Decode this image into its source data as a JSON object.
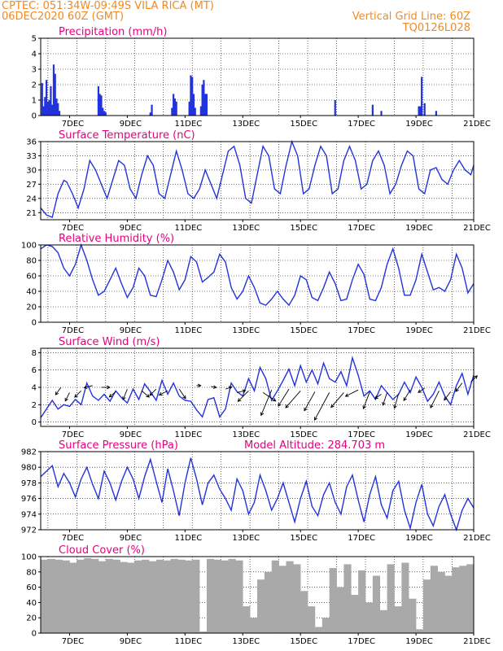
{
  "header": {
    "line1": "CPTEC:   051:34W-09:49S  VILA RICA (MT)",
    "line2": "06DEC2020 60Z (GMT)",
    "right1": "Vertical Grid Line: 60Z",
    "right2": "TQ0126L028"
  },
  "x_axis": {
    "start_day": 6.0,
    "end_day": 21.0,
    "tick_days": [
      7,
      9,
      11,
      13,
      15,
      17,
      19,
      21
    ],
    "tick_labels": [
      "7DEC",
      "9DEC",
      "11DEC",
      "13DEC",
      "15DEC",
      "17DEC",
      "19DEC",
      "21DEC"
    ]
  },
  "chart_data": [
    {
      "id": "precip",
      "type": "bar",
      "title": "Precipitation (mm/h)",
      "ylim": [
        0,
        5
      ],
      "yticks": [
        0,
        1,
        2,
        3,
        4,
        5
      ],
      "x": [
        6.05,
        6.1,
        6.15,
        6.2,
        6.25,
        6.3,
        6.35,
        6.4,
        6.45,
        6.5,
        6.55,
        6.6,
        6.65,
        8.0,
        8.05,
        8.1,
        8.15,
        8.2,
        8.25,
        9.8,
        9.85,
        10.55,
        10.6,
        10.65,
        10.7,
        11.15,
        11.2,
        11.25,
        11.3,
        11.35,
        11.55,
        11.6,
        11.65,
        11.7,
        11.75,
        16.2,
        17.5,
        17.8,
        19.1,
        19.15,
        19.2,
        19.3,
        19.7
      ],
      "values": [
        2.1,
        0.6,
        1.2,
        2.3,
        0.9,
        1.0,
        1.9,
        0.7,
        3.3,
        2.7,
        1.1,
        0.8,
        0.3,
        1.9,
        1.4,
        1.3,
        0.5,
        0.3,
        0.2,
        0.2,
        0.7,
        0.5,
        1.4,
        1.1,
        0.9,
        0.9,
        2.6,
        2.5,
        1.4,
        0.5,
        0.6,
        2.0,
        2.3,
        1.4,
        1.4,
        1.0,
        0.7,
        0.3,
        0.6,
        0.6,
        2.5,
        0.8,
        0.3
      ]
    },
    {
      "id": "temp",
      "type": "line",
      "title": "Surface Temperature (nC)",
      "ylim": [
        19.5,
        36
      ],
      "yticks": [
        21,
        24,
        27,
        30,
        33,
        36
      ],
      "x": [
        6.0,
        6.2,
        6.4,
        6.6,
        6.8,
        6.9,
        7.1,
        7.3,
        7.5,
        7.7,
        7.9,
        8.1,
        8.3,
        8.5,
        8.7,
        8.9,
        9.1,
        9.3,
        9.5,
        9.7,
        9.9,
        10.1,
        10.3,
        10.5,
        10.7,
        10.9,
        11.1,
        11.3,
        11.5,
        11.7,
        11.9,
        12.1,
        12.3,
        12.5,
        12.7,
        12.9,
        13.1,
        13.3,
        13.5,
        13.7,
        13.9,
        14.1,
        14.3,
        14.5,
        14.7,
        14.9,
        15.1,
        15.3,
        15.5,
        15.7,
        15.9,
        16.1,
        16.3,
        16.5,
        16.7,
        16.9,
        17.1,
        17.3,
        17.5,
        17.7,
        17.9,
        18.1,
        18.3,
        18.5,
        18.7,
        18.9,
        19.1,
        19.3,
        19.5,
        19.7,
        19.9,
        20.1,
        20.3,
        20.5,
        20.7,
        20.9,
        21.0
      ],
      "values": [
        22,
        20.5,
        20,
        25,
        27.8,
        27.5,
        25,
        22,
        26,
        32,
        30,
        27,
        24,
        28,
        32,
        31,
        26,
        24,
        29,
        33,
        31,
        25,
        24,
        29,
        34,
        30,
        25,
        24,
        26,
        30,
        27,
        24,
        29,
        34,
        35,
        31,
        24,
        23,
        29,
        35,
        33,
        26,
        25,
        31,
        36,
        33,
        25,
        26,
        31,
        35,
        33,
        25,
        26,
        32,
        35,
        32,
        26,
        27,
        32,
        34,
        31,
        25,
        27,
        31,
        34,
        33,
        26,
        25,
        30,
        30.5,
        28,
        27,
        30,
        32,
        30,
        29,
        31
      ]
    },
    {
      "id": "rh",
      "type": "line",
      "title": "Relative Humidity (%)",
      "ylim": [
        0,
        100
      ],
      "yticks": [
        0,
        20,
        40,
        60,
        80,
        100
      ],
      "x": [
        6.0,
        6.2,
        6.4,
        6.6,
        6.8,
        7.0,
        7.2,
        7.4,
        7.6,
        7.8,
        8.0,
        8.2,
        8.4,
        8.6,
        8.8,
        9.0,
        9.2,
        9.4,
        9.6,
        9.8,
        10.0,
        10.2,
        10.4,
        10.6,
        10.8,
        11.0,
        11.2,
        11.4,
        11.6,
        11.8,
        12.0,
        12.2,
        12.4,
        12.6,
        12.8,
        13.0,
        13.2,
        13.4,
        13.6,
        13.8,
        14.0,
        14.2,
        14.4,
        14.6,
        14.8,
        15.0,
        15.2,
        15.4,
        15.6,
        15.8,
        16.0,
        16.2,
        16.4,
        16.6,
        16.8,
        17.0,
        17.2,
        17.4,
        17.6,
        17.8,
        18.0,
        18.2,
        18.4,
        18.6,
        18.8,
        19.0,
        19.2,
        19.4,
        19.6,
        19.8,
        20.0,
        20.2,
        20.4,
        20.6,
        20.8,
        21.0
      ],
      "values": [
        95,
        100,
        98,
        90,
        70,
        60,
        75,
        100,
        80,
        55,
        35,
        40,
        55,
        70,
        50,
        32,
        45,
        70,
        60,
        35,
        33,
        55,
        80,
        65,
        42,
        55,
        85,
        78,
        52,
        58,
        65,
        88,
        78,
        45,
        30,
        40,
        60,
        45,
        25,
        22,
        30,
        40,
        30,
        22,
        35,
        60,
        55,
        32,
        28,
        45,
        65,
        50,
        28,
        30,
        55,
        75,
        62,
        30,
        28,
        45,
        75,
        95,
        70,
        35,
        35,
        55,
        88,
        65,
        42,
        45,
        40,
        55,
        88,
        70,
        38,
        50
      ]
    },
    {
      "id": "wind",
      "type": "line",
      "title": "Surface Wind (m/s)",
      "ylim": [
        -0.5,
        8.5
      ],
      "yticks": [
        0,
        2,
        4,
        6,
        8
      ],
      "x": [
        6.0,
        6.2,
        6.4,
        6.6,
        6.8,
        7.0,
        7.2,
        7.4,
        7.6,
        7.8,
        8.0,
        8.2,
        8.4,
        8.6,
        8.8,
        9.0,
        9.2,
        9.4,
        9.6,
        9.8,
        10.0,
        10.2,
        10.4,
        10.6,
        10.8,
        11.0,
        11.2,
        11.4,
        11.6,
        11.8,
        12.0,
        12.2,
        12.4,
        12.6,
        12.8,
        13.0,
        13.2,
        13.4,
        13.6,
        13.8,
        14.0,
        14.2,
        14.4,
        14.6,
        14.8,
        15.0,
        15.2,
        15.4,
        15.6,
        15.8,
        16.0,
        16.2,
        16.4,
        16.6,
        16.8,
        17.0,
        17.2,
        17.4,
        17.6,
        17.8,
        18.0,
        18.2,
        18.4,
        18.6,
        18.8,
        19.0,
        19.2,
        19.4,
        19.6,
        19.8,
        20.0,
        20.2,
        20.4,
        20.6,
        20.8,
        21.0
      ],
      "values": [
        0.5,
        1.5,
        2.5,
        1.5,
        2.0,
        1.8,
        2.6,
        2.0,
        4.5,
        3.0,
        2.5,
        3.2,
        2.4,
        3.6,
        2.8,
        2.2,
        3.8,
        2.6,
        4.4,
        3.5,
        2.5,
        4.8,
        3.2,
        4.5,
        3.0,
        2.5,
        2.4,
        1.4,
        0.6,
        2.6,
        2.8,
        0.6,
        1.5,
        4.5,
        3.5,
        3.0,
        5.0,
        3.6,
        6.3,
        5.0,
        2.5,
        3.6,
        4.8,
        6.1,
        4.2,
        6.5,
        4.6,
        6.0,
        4.4,
        6.8,
        5.0,
        4.6,
        5.8,
        4.2,
        7.4,
        5.4,
        3.0,
        3.6,
        2.6,
        4.2,
        3.4,
        2.6,
        3.2,
        4.6,
        3.4,
        5.2,
        4.0,
        2.4,
        3.2,
        4.6,
        3.0,
        2.0,
        4.2,
        5.6,
        3.2,
        5.4
      ]
    },
    {
      "id": "pressure",
      "type": "line",
      "title": "Surface Pressure (hPa)",
      "annotation": "Model Altitude: 284.703 m",
      "ylim": [
        972,
        982
      ],
      "yticks": [
        972,
        974,
        976,
        978,
        980,
        982
      ],
      "x": [
        6.0,
        6.2,
        6.4,
        6.6,
        6.8,
        7.0,
        7.2,
        7.4,
        7.6,
        7.8,
        8.0,
        8.2,
        8.4,
        8.6,
        8.8,
        9.0,
        9.2,
        9.4,
        9.6,
        9.8,
        10.0,
        10.2,
        10.4,
        10.6,
        10.8,
        11.0,
        11.2,
        11.4,
        11.6,
        11.8,
        12.0,
        12.2,
        12.4,
        12.6,
        12.8,
        13.0,
        13.2,
        13.4,
        13.6,
        13.8,
        14.0,
        14.2,
        14.4,
        14.6,
        14.8,
        15.0,
        15.2,
        15.4,
        15.6,
        15.8,
        16.0,
        16.2,
        16.4,
        16.6,
        16.8,
        17.0,
        17.2,
        17.4,
        17.6,
        17.8,
        18.0,
        18.2,
        18.4,
        18.6,
        18.8,
        19.0,
        19.2,
        19.4,
        19.6,
        19.8,
        20.0,
        20.2,
        20.4,
        20.6,
        20.8,
        21.0
      ],
      "values": [
        978.8,
        979.5,
        980.2,
        977.5,
        979.2,
        978.0,
        976.2,
        978.5,
        980.0,
        977.8,
        976.0,
        979.5,
        978.0,
        975.8,
        978.2,
        980.0,
        978.5,
        976.0,
        978.8,
        981.0,
        978.2,
        975.5,
        979.8,
        977.0,
        973.8,
        978.0,
        981.2,
        978.5,
        975.2,
        978.0,
        979.0,
        977.2,
        976.0,
        974.5,
        978.5,
        977.0,
        974.0,
        975.5,
        979.0,
        977.0,
        974.5,
        976.0,
        978.0,
        975.5,
        973.0,
        976.0,
        978.2,
        975.0,
        973.8,
        976.5,
        978.0,
        975.5,
        974.0,
        977.5,
        979.0,
        975.8,
        973.0,
        976.5,
        978.8,
        975.2,
        973.5,
        977.0,
        978.2,
        974.5,
        972.2,
        975.5,
        977.8,
        974.0,
        972.5,
        975.0,
        976.5,
        974.0,
        972.0,
        974.5,
        976.0,
        974.8
      ]
    },
    {
      "id": "cloud",
      "type": "area",
      "title": "Cloud Cover (%)",
      "ylim": [
        0,
        100
      ],
      "yticks": [
        0,
        20,
        40,
        60,
        80,
        100
      ],
      "x": [
        6.0,
        6.25,
        6.5,
        6.75,
        7.0,
        7.25,
        7.5,
        7.75,
        8.0,
        8.25,
        8.5,
        8.75,
        9.0,
        9.25,
        9.5,
        9.75,
        10.0,
        10.25,
        10.5,
        10.75,
        11.0,
        11.25,
        11.5,
        11.75,
        12.0,
        12.25,
        12.5,
        12.75,
        13.0,
        13.25,
        13.5,
        13.75,
        14.0,
        14.25,
        14.5,
        14.75,
        15.0,
        15.25,
        15.5,
        15.75,
        16.0,
        16.25,
        16.5,
        16.75,
        17.0,
        17.25,
        17.5,
        17.75,
        18.0,
        18.25,
        18.5,
        18.75,
        19.0,
        19.25,
        19.5,
        19.75,
        20.0,
        20.25,
        20.5,
        20.75,
        21.0
      ],
      "values": [
        96,
        97,
        96,
        95,
        92,
        96,
        98,
        97,
        94,
        97,
        96,
        93,
        92,
        95,
        96,
        94,
        96,
        95,
        97,
        96,
        95,
        96,
        2,
        97,
        96,
        95,
        97,
        95,
        35,
        20,
        70,
        80,
        95,
        88,
        94,
        90,
        55,
        35,
        8,
        20,
        85,
        60,
        90,
        50,
        82,
        40,
        75,
        30,
        90,
        35,
        92,
        45,
        5,
        70,
        88,
        80,
        75,
        86,
        88,
        90,
        92
      ]
    }
  ]
}
